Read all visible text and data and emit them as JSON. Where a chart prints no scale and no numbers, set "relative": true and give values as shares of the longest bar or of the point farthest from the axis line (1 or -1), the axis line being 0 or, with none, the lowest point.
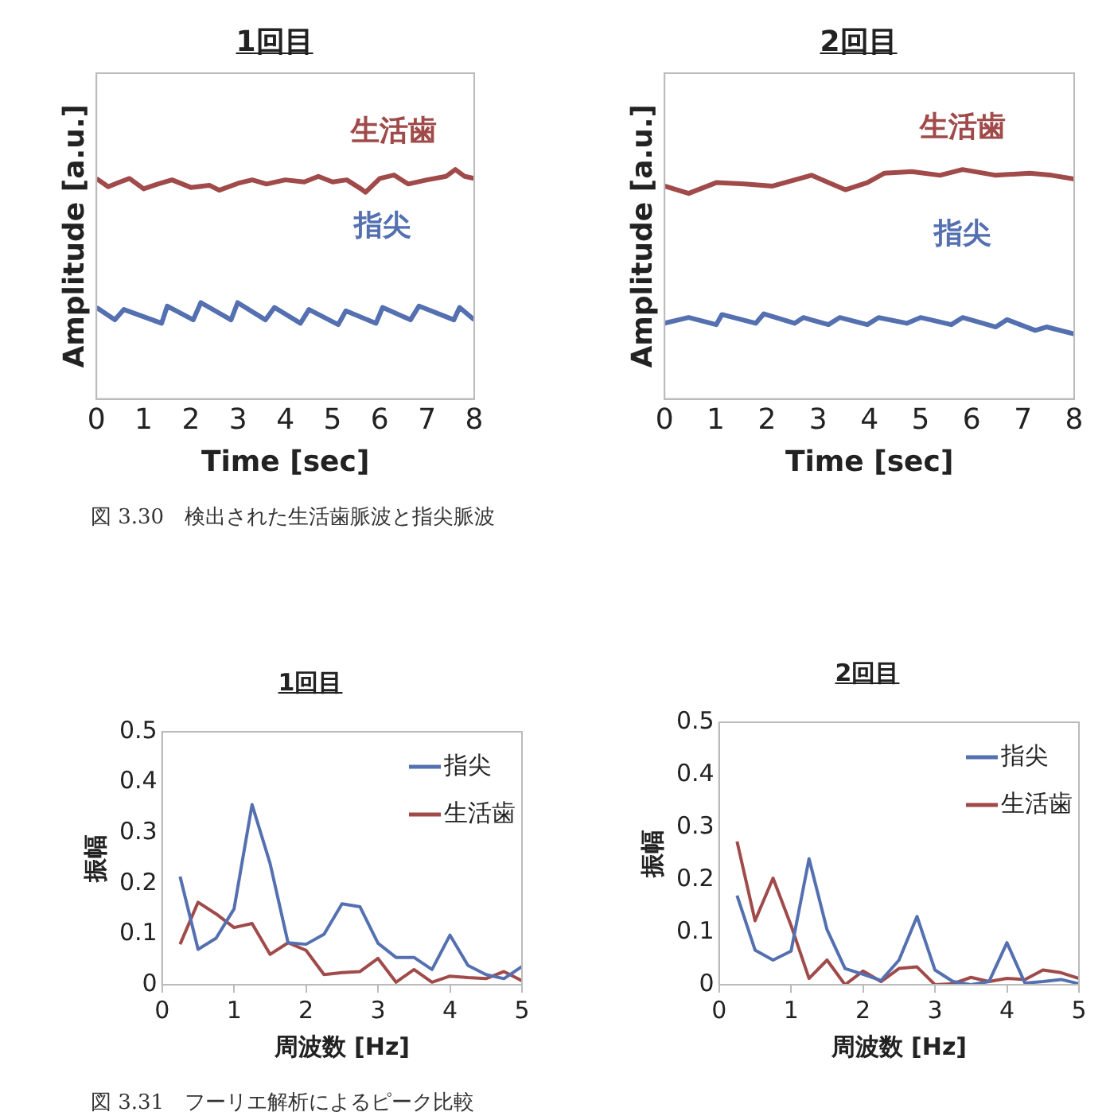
{
  "chart_data": [
    {
      "type": "line",
      "title": "1回目",
      "xlabel": "Time [sec]",
      "ylabel": "Amplitude [a.u.]",
      "relative": true,
      "tick_labels": "x",
      "xlim": [
        0,
        8
      ],
      "xticks": [
        0,
        1,
        2,
        3,
        4,
        5,
        6,
        7,
        8
      ],
      "legend": false,
      "annotations": [
        "図 3.30　検出された生活歯脈波と指尖脈波"
      ],
      "series": [
        {
          "name": "生活歯",
          "color": "#a04a4a",
          "x": [
            0,
            0.25,
            0.5,
            0.7,
            1.0,
            1.3,
            1.6,
            2.0,
            2.4,
            2.6,
            3.0,
            3.3,
            3.6,
            4.0,
            4.4,
            4.7,
            5.0,
            5.3,
            5.6,
            5.7,
            6.0,
            6.3,
            6.6,
            7.0,
            7.4,
            7.6,
            7.8,
            8.0
          ],
          "values": [
            0.961,
            0.925,
            0.946,
            0.961,
            0.916,
            0.937,
            0.955,
            0.922,
            0.931,
            0.91,
            0.94,
            0.955,
            0.937,
            0.955,
            0.946,
            0.97,
            0.946,
            0.955,
            0.916,
            0.901,
            0.961,
            0.976,
            0.937,
            0.955,
            0.97,
            1,
            0.97,
            0.961
          ]
        },
        {
          "name": "指尖",
          "color": "#5470b0",
          "x": [
            0,
            0.39,
            0.58,
            1.38,
            1.5,
            2.05,
            2.21,
            2.85,
            2.99,
            3.58,
            3.77,
            4.32,
            4.5,
            5.12,
            5.28,
            5.92,
            6.06,
            6.65,
            6.83,
            7.57,
            7.69,
            8.0
          ],
          "values": [
            0.399,
            0.345,
            0.39,
            0.33,
            0.405,
            0.345,
            0.42,
            0.345,
            0.42,
            0.345,
            0.399,
            0.33,
            0.39,
            0.324,
            0.384,
            0.33,
            0.399,
            0.345,
            0.405,
            0.345,
            0.399,
            0.345
          ]
        }
      ]
    },
    {
      "type": "line",
      "title": "2回目",
      "xlabel": "Time [sec]",
      "ylabel": "Amplitude [a.u.]",
      "relative": true,
      "tick_labels": "x",
      "xlim": [
        0,
        8
      ],
      "xticks": [
        0,
        1,
        2,
        3,
        4,
        5,
        6,
        7,
        8
      ],
      "legend": false,
      "series": [
        {
          "name": "生活歯",
          "color": "#a04a4a",
          "x": [
            0,
            0.47,
            1.01,
            1.56,
            2.11,
            2.87,
            3.2,
            3.53,
            3.96,
            4.29,
            4.83,
            5.38,
            5.82,
            6.47,
            7.13,
            7.56,
            8.0
          ],
          "values": [
            0.928,
            0.896,
            0.943,
            0.937,
            0.928,
            0.975,
            0.943,
            0.912,
            0.943,
            0.984,
            0.991,
            0.975,
            1,
            0.975,
            0.984,
            0.975,
            0.959
          ]
        },
        {
          "name": "指尖",
          "color": "#5470b0",
          "x": [
            0,
            0.47,
            1.01,
            1.12,
            1.78,
            1.94,
            2.54,
            2.71,
            3.2,
            3.42,
            3.96,
            4.18,
            4.73,
            5.0,
            5.6,
            5.82,
            6.47,
            6.69,
            7.24,
            7.46,
            8.0
          ],
          "values": [
            0.33,
            0.355,
            0.324,
            0.368,
            0.33,
            0.371,
            0.33,
            0.355,
            0.324,
            0.355,
            0.324,
            0.355,
            0.33,
            0.355,
            0.324,
            0.355,
            0.314,
            0.346,
            0.299,
            0.314,
            0.283
          ]
        }
      ]
    },
    {
      "type": "line",
      "title": "1回目",
      "xlabel": "周波数 [Hz]",
      "ylabel": "振幅",
      "xlim": [
        0,
        5
      ],
      "xticks": [
        0,
        1,
        2,
        3,
        4,
        5
      ],
      "ylim": [
        0,
        0.5
      ],
      "yticks": [
        0,
        0.1,
        0.2,
        0.3,
        0.4,
        0.5
      ],
      "legend": "top right",
      "grid": false,
      "annotations": [
        "図 3.31　フーリエ解析によるピーク比較"
      ],
      "x": [
        0.25,
        0.5,
        0.75,
        1.0,
        1.25,
        1.5,
        1.75,
        2.0,
        2.25,
        2.5,
        2.75,
        3.0,
        3.25,
        3.5,
        3.75,
        4.0,
        4.25,
        4.5,
        4.75,
        5.0
      ],
      "series": [
        {
          "name": "指尖",
          "color": "#5470b0",
          "values": [
            0.214,
            0.07,
            0.092,
            0.15,
            0.356,
            0.24,
            0.083,
            0.08,
            0.1,
            0.16,
            0.154,
            0.082,
            0.054,
            0.054,
            0.03,
            0.098,
            0.038,
            0.02,
            0.012,
            0.036
          ]
        },
        {
          "name": "生活歯",
          "color": "#a04a4a",
          "values": [
            0.08,
            0.163,
            0.14,
            0.113,
            0.121,
            0.06,
            0.083,
            0.068,
            0.02,
            0.024,
            0.026,
            0.052,
            0.005,
            0.03,
            0.005,
            0.017,
            0.014,
            0.012,
            0.026,
            0.008
          ]
        }
      ]
    },
    {
      "type": "line",
      "title": "2回目",
      "xlabel": "周波数 [Hz]",
      "ylabel": "振幅",
      "xlim": [
        0,
        5
      ],
      "xticks": [
        0,
        1,
        2,
        3,
        4,
        5
      ],
      "ylim": [
        0,
        0.5
      ],
      "yticks": [
        0,
        0.1,
        0.2,
        0.3,
        0.4,
        0.5
      ],
      "legend": "top right",
      "grid": false,
      "x": [
        0.25,
        0.5,
        0.75,
        1.0,
        1.25,
        1.5,
        1.75,
        2.0,
        2.25,
        2.5,
        2.75,
        3.0,
        3.25,
        3.5,
        3.75,
        4.0,
        4.25,
        4.5,
        4.75,
        5.0
      ],
      "series": [
        {
          "name": "指尖",
          "color": "#5470b0",
          "values": [
            0.17,
            0.066,
            0.047,
            0.064,
            0.24,
            0.105,
            0.031,
            0.02,
            0.008,
            0.047,
            0.13,
            0.028,
            0.006,
            0,
            0.006,
            0.08,
            0.003,
            0.006,
            0.01,
            0.002
          ]
        },
        {
          "name": "生活歯",
          "color": "#a04a4a",
          "values": [
            0.273,
            0.122,
            0.203,
            0.113,
            0.012,
            0.047,
            0,
            0.026,
            0.006,
            0.031,
            0.034,
            0,
            0.002,
            0.014,
            0.006,
            0.012,
            0.01,
            0.028,
            0.023,
            0.012
          ]
        }
      ]
    }
  ]
}
